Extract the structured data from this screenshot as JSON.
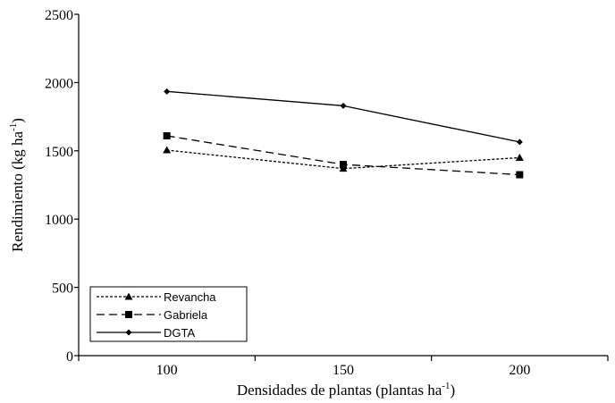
{
  "chart_data": {
    "type": "line",
    "categories": [
      "100",
      "150",
      "200"
    ],
    "x": [
      100,
      150,
      200
    ],
    "ylim": [
      0,
      2500
    ],
    "yticks": [
      0,
      500,
      1000,
      1500,
      2000,
      2500
    ],
    "xlabel": "Densidades de plantas (plantas ha",
    "xlabel_sup": "-1",
    "xlabel_suffix": ")",
    "ylabel": "Rendimiento (kg ha",
    "ylabel_sup": "-1",
    "ylabel_suffix": ")",
    "legend_position": "bottom-left",
    "series": [
      {
        "name": "Revancha",
        "values": [
          1505,
          1370,
          1450
        ],
        "line_style": "dotted",
        "marker": "triangle",
        "color": "#000000"
      },
      {
        "name": "Gabriela",
        "values": [
          1610,
          1400,
          1325
        ],
        "line_style": "dashed",
        "marker": "square",
        "color": "#000000"
      },
      {
        "name": "DGTA",
        "values": [
          1935,
          1830,
          1565
        ],
        "line_style": "solid",
        "marker": "diamond",
        "color": "#000000"
      }
    ]
  }
}
